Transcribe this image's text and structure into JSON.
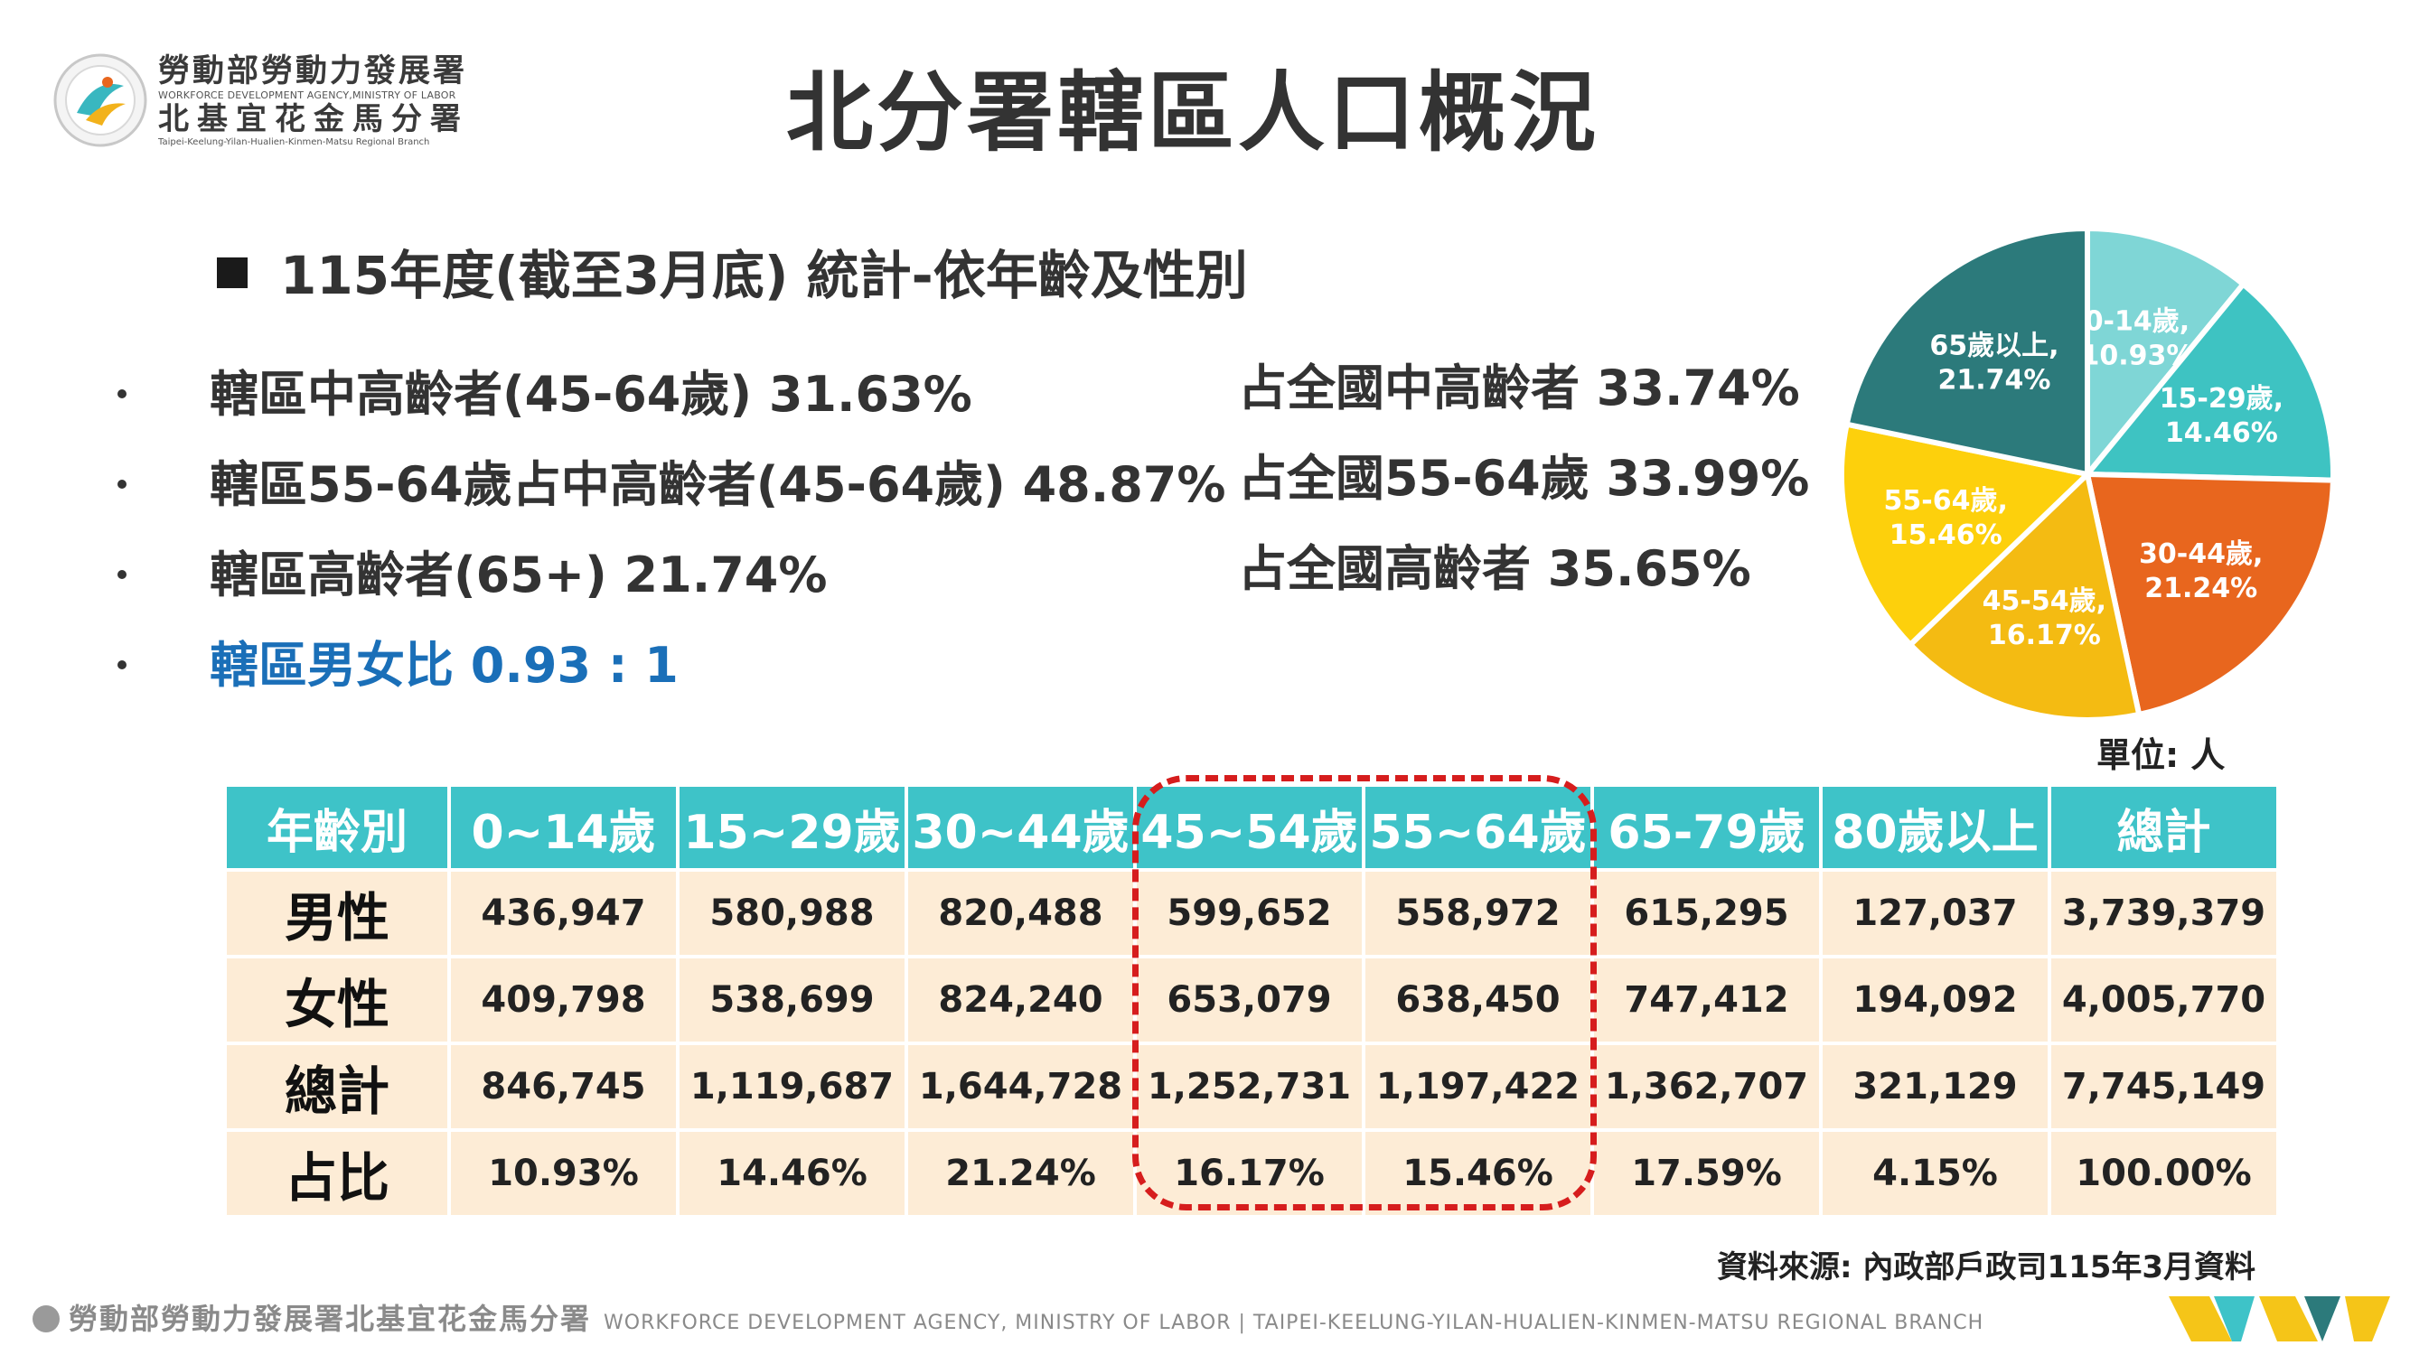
{
  "org": {
    "name_cn": "勞動部勞動力發展署",
    "name_en": "WORKFORCE DEVELOPMENT AGENCY,MINISTRY OF LABOR",
    "branch_cn": "北基宜花金馬分署",
    "branch_en": "Taipei-Keelung-Yilan-Hualien-Kinmen-Matsu Regional Branch"
  },
  "title": "北分署轄區人口概況",
  "subtitle": "115年度(截至3月底) 統計-依年齡及性別",
  "bullets": [
    {
      "text": "轄區中高齡者(45-64歲) 31.63%"
    },
    {
      "text": "轄區55-64歲占中高齡者(45-64歲) 48.87%"
    },
    {
      "text": "轄區高齡者(65+) 21.74%"
    },
    {
      "text": "轄區男女比 0.93 : 1"
    }
  ],
  "national_stats": [
    {
      "text": "占全國中高齡者 33.74%"
    },
    {
      "text": "占全國55-64歲 33.99%"
    },
    {
      "text": "占全國高齡者 35.65%"
    }
  ],
  "colors": {
    "teal_header": "#3ec3c8",
    "row_bg": "#fdecd6",
    "highlight_red": "#d61d1d",
    "male_female_blue": "#1a6fb8"
  },
  "chart_data": [
    {
      "type": "pie",
      "unit_label": "單位: 人",
      "slices": [
        {
          "label": "0-14歲,",
          "pct_label": "10.93%",
          "value": 10.93,
          "color": "#7fd6d6"
        },
        {
          "label": "15-29歲,",
          "pct_label": "14.46%",
          "value": 14.46,
          "color": "#3ec3c2"
        },
        {
          "label": "30-44歲,",
          "pct_label": "21.24%",
          "value": 21.24,
          "color": "#e8661e"
        },
        {
          "label": "45-54歲,",
          "pct_label": "16.17%",
          "value": 16.17,
          "color": "#f4bb12"
        },
        {
          "label": "55-64歲,",
          "pct_label": "15.46%",
          "value": 15.46,
          "color": "#fdd00c"
        },
        {
          "label": "65歲以上,",
          "pct_label": "21.74%",
          "value": 21.74,
          "color": "#2c7a7b"
        }
      ]
    },
    {
      "type": "table",
      "columns": [
        "年齡別",
        "0~14歲",
        "15~29歲",
        "30~44歲",
        "45~54歲",
        "55~64歲",
        "65-79歲",
        "80歲以上",
        "總計"
      ],
      "rows": [
        {
          "label": "男性",
          "cells": [
            "436,947",
            "580,988",
            "820,488",
            "599,652",
            "558,972",
            "615,295",
            "127,037",
            "3,739,379"
          ]
        },
        {
          "label": "女性",
          "cells": [
            "409,798",
            "538,699",
            "824,240",
            "653,079",
            "638,450",
            "747,412",
            "194,092",
            "4,005,770"
          ]
        },
        {
          "label": "總計",
          "cells": [
            "846,745",
            "1,119,687",
            "1,644,728",
            "1,252,731",
            "1,197,422",
            "1,362,707",
            "321,129",
            "7,745,149"
          ]
        },
        {
          "label": "占比",
          "cells": [
            "10.93%",
            "14.46%",
            "21.24%",
            "16.17%",
            "15.46%",
            "17.59%",
            "4.15%",
            "100.00%"
          ]
        }
      ],
      "highlighted_columns": [
        "45~54歲",
        "55~64歲"
      ]
    }
  ],
  "source": "資料來源: 內政部戶政司115年3月資料",
  "footer": {
    "cn": "勞動部勞動力發展署北基宜花金馬分署",
    "en": "WORKFORCE DEVELOPMENT AGENCY, MINISTRY OF LABOR  |  TAIPEI-KEELUNG-YILAN-HUALIEN-KINMEN-MATSU REGIONAL BRANCH"
  }
}
